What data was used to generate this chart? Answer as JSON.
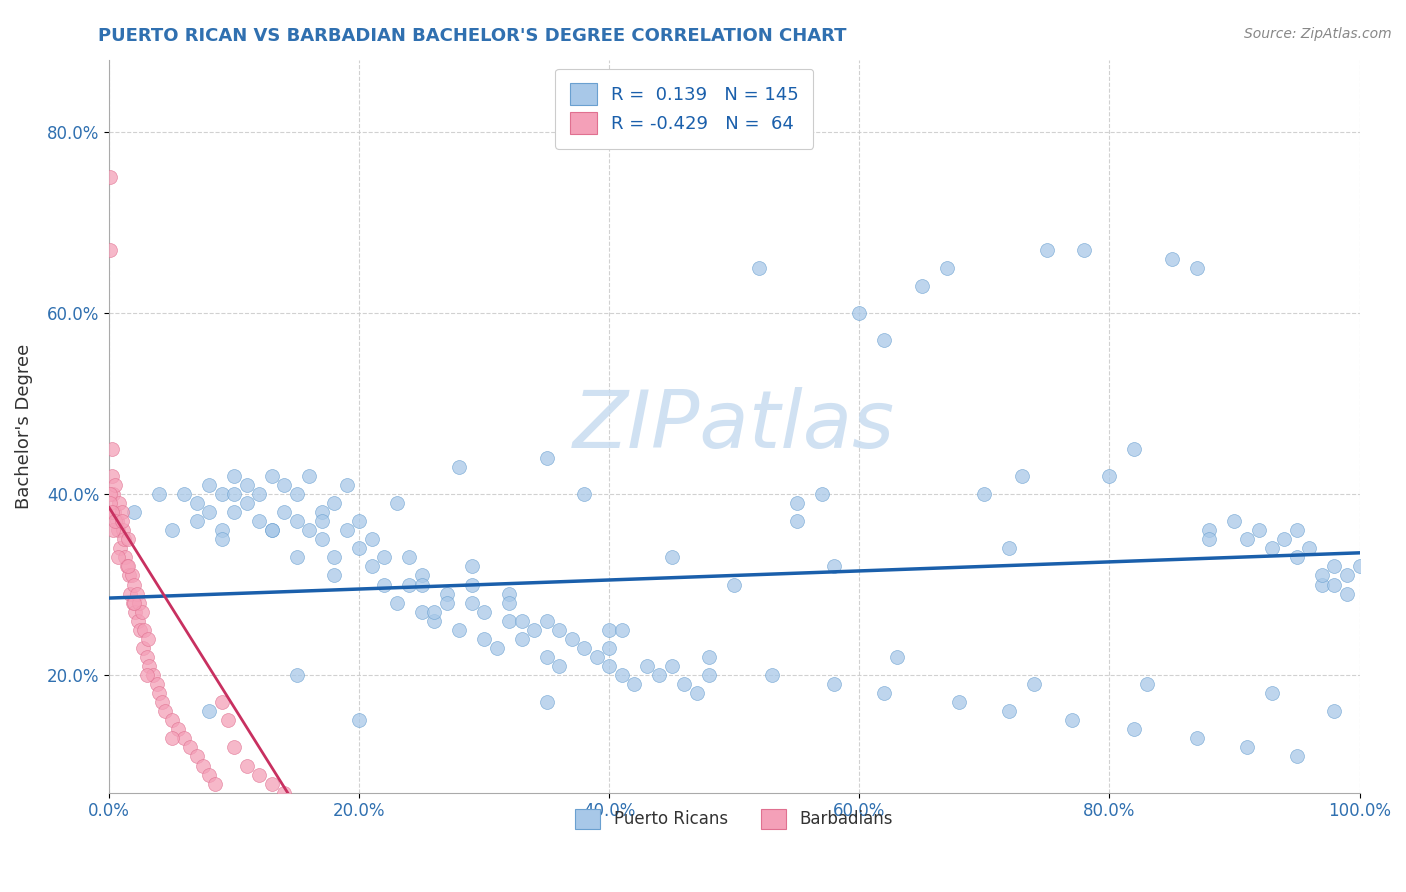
{
  "title": "PUERTO RICAN VS BARBADIAN BACHELOR'S DEGREE CORRELATION CHART",
  "source": "Source: ZipAtlas.com",
  "ylabel": "Bachelor's Degree",
  "watermark": "ZIPatlas",
  "blue_R": 0.139,
  "blue_N": 145,
  "pink_R": -0.429,
  "pink_N": 64,
  "blue_color": "#A8C8E8",
  "pink_color": "#F4A0B8",
  "blue_edge_color": "#6AA0D0",
  "pink_edge_color": "#E07090",
  "blue_line_color": "#1A5FAB",
  "pink_line_color": "#C83060",
  "title_color": "#3070B0",
  "legend_text_color": "#1A5FAB",
  "source_color": "#888888",
  "tick_color": "#3070B0",
  "ylabel_color": "#333333",
  "watermark_color": "#C8DCF0",
  "xlim": [
    0.0,
    1.0
  ],
  "ylim": [
    0.07,
    0.88
  ],
  "xticks": [
    0.0,
    0.2,
    0.4,
    0.6,
    0.8,
    1.0
  ],
  "yticks": [
    0.2,
    0.4,
    0.6,
    0.8
  ],
  "xtick_labels": [
    "0.0%",
    "20.0%",
    "40.0%",
    "60.0%",
    "80.0%",
    "100.0%"
  ],
  "ytick_labels": [
    "20.0%",
    "40.0%",
    "60.0%",
    "80.0%"
  ],
  "blue_x": [
    0.02,
    0.04,
    0.05,
    0.06,
    0.07,
    0.07,
    0.08,
    0.08,
    0.09,
    0.09,
    0.1,
    0.1,
    0.1,
    0.11,
    0.11,
    0.12,
    0.12,
    0.13,
    0.13,
    0.14,
    0.14,
    0.15,
    0.15,
    0.16,
    0.16,
    0.17,
    0.17,
    0.18,
    0.18,
    0.19,
    0.2,
    0.2,
    0.21,
    0.21,
    0.22,
    0.22,
    0.23,
    0.24,
    0.25,
    0.25,
    0.26,
    0.27,
    0.28,
    0.29,
    0.3,
    0.3,
    0.31,
    0.32,
    0.33,
    0.34,
    0.35,
    0.35,
    0.36,
    0.37,
    0.38,
    0.39,
    0.4,
    0.4,
    0.41,
    0.42,
    0.43,
    0.44,
    0.45,
    0.46,
    0.47,
    0.48,
    0.5,
    0.52,
    0.55,
    0.57,
    0.58,
    0.6,
    0.62,
    0.65,
    0.67,
    0.7,
    0.73,
    0.75,
    0.78,
    0.8,
    0.82,
    0.85,
    0.87,
    0.88,
    0.9,
    0.91,
    0.92,
    0.93,
    0.94,
    0.95,
    0.95,
    0.96,
    0.97,
    0.97,
    0.98,
    0.98,
    0.99,
    0.99,
    1.0,
    0.35,
    0.28,
    0.19,
    0.23,
    0.17,
    0.13,
    0.29,
    0.32,
    0.26,
    0.09,
    0.15,
    0.18,
    0.25,
    0.27,
    0.33,
    0.36,
    0.4,
    0.45,
    0.48,
    0.53,
    0.58,
    0.62,
    0.68,
    0.72,
    0.77,
    0.82,
    0.87,
    0.91,
    0.95,
    0.38,
    0.55,
    0.72,
    0.88,
    0.15,
    0.08,
    0.24,
    0.29,
    0.41,
    0.63,
    0.74,
    0.83,
    0.93,
    0.98,
    0.35,
    0.2,
    0.32
  ],
  "blue_y": [
    0.38,
    0.4,
    0.36,
    0.4,
    0.37,
    0.39,
    0.38,
    0.41,
    0.36,
    0.4,
    0.38,
    0.4,
    0.42,
    0.39,
    0.41,
    0.37,
    0.4,
    0.36,
    0.42,
    0.38,
    0.41,
    0.37,
    0.4,
    0.36,
    0.42,
    0.38,
    0.35,
    0.39,
    0.33,
    0.36,
    0.34,
    0.37,
    0.32,
    0.35,
    0.3,
    0.33,
    0.28,
    0.3,
    0.27,
    0.31,
    0.26,
    0.29,
    0.25,
    0.28,
    0.24,
    0.27,
    0.23,
    0.26,
    0.24,
    0.25,
    0.22,
    0.26,
    0.21,
    0.24,
    0.23,
    0.22,
    0.21,
    0.25,
    0.2,
    0.19,
    0.21,
    0.2,
    0.33,
    0.19,
    0.18,
    0.2,
    0.3,
    0.65,
    0.39,
    0.4,
    0.32,
    0.6,
    0.57,
    0.63,
    0.65,
    0.4,
    0.42,
    0.67,
    0.67,
    0.42,
    0.45,
    0.66,
    0.65,
    0.36,
    0.37,
    0.35,
    0.36,
    0.34,
    0.35,
    0.36,
    0.33,
    0.34,
    0.3,
    0.31,
    0.32,
    0.3,
    0.31,
    0.29,
    0.32,
    0.44,
    0.43,
    0.41,
    0.39,
    0.37,
    0.36,
    0.32,
    0.29,
    0.27,
    0.35,
    0.33,
    0.31,
    0.3,
    0.28,
    0.26,
    0.25,
    0.23,
    0.21,
    0.22,
    0.2,
    0.19,
    0.18,
    0.17,
    0.16,
    0.15,
    0.14,
    0.13,
    0.12,
    0.11,
    0.4,
    0.37,
    0.34,
    0.35,
    0.2,
    0.16,
    0.33,
    0.3,
    0.25,
    0.22,
    0.19,
    0.19,
    0.18,
    0.16,
    0.17,
    0.15,
    0.28
  ],
  "pink_x": [
    0.001,
    0.001,
    0.002,
    0.002,
    0.003,
    0.004,
    0.005,
    0.006,
    0.007,
    0.008,
    0.009,
    0.01,
    0.011,
    0.012,
    0.013,
    0.014,
    0.015,
    0.016,
    0.017,
    0.018,
    0.019,
    0.02,
    0.021,
    0.022,
    0.023,
    0.024,
    0.025,
    0.026,
    0.027,
    0.028,
    0.03,
    0.031,
    0.032,
    0.035,
    0.038,
    0.04,
    0.042,
    0.045,
    0.05,
    0.055,
    0.06,
    0.065,
    0.07,
    0.075,
    0.08,
    0.085,
    0.09,
    0.095,
    0.1,
    0.11,
    0.12,
    0.13,
    0.14,
    0.001,
    0.001,
    0.002,
    0.003,
    0.005,
    0.007,
    0.01,
    0.015,
    0.02,
    0.03,
    0.05
  ],
  "pink_y": [
    0.75,
    0.67,
    0.42,
    0.45,
    0.4,
    0.38,
    0.41,
    0.37,
    0.36,
    0.39,
    0.34,
    0.38,
    0.36,
    0.35,
    0.33,
    0.32,
    0.35,
    0.31,
    0.29,
    0.31,
    0.28,
    0.3,
    0.27,
    0.29,
    0.26,
    0.28,
    0.25,
    0.27,
    0.23,
    0.25,
    0.22,
    0.24,
    0.21,
    0.2,
    0.19,
    0.18,
    0.17,
    0.16,
    0.15,
    0.14,
    0.13,
    0.12,
    0.11,
    0.1,
    0.09,
    0.08,
    0.17,
    0.15,
    0.12,
    0.1,
    0.09,
    0.08,
    0.07,
    0.4,
    0.39,
    0.38,
    0.36,
    0.37,
    0.33,
    0.37,
    0.32,
    0.28,
    0.2,
    0.13
  ],
  "blue_trend_x": [
    0.0,
    1.0
  ],
  "blue_trend_y": [
    0.285,
    0.335
  ],
  "pink_trend_x": [
    0.0,
    0.145
  ],
  "pink_trend_y": [
    0.385,
    0.065
  ]
}
